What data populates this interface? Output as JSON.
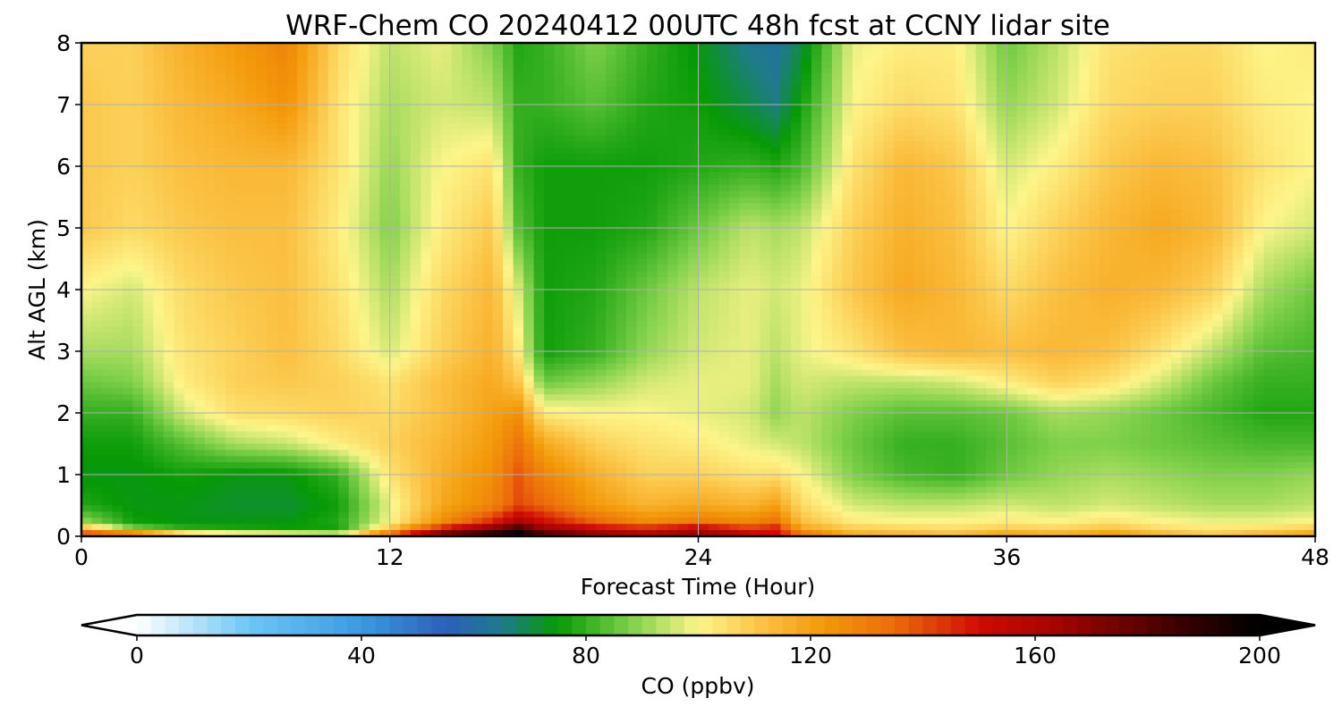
{
  "chart_data": {
    "type": "heatmap",
    "title": "WRF-Chem CO  20240412 00UTC 48h fcst at CCNY lidar site",
    "xlabel": "Forecast Time (Hour)",
    "ylabel": "Alt AGL (km)",
    "xlim": [
      0,
      48
    ],
    "ylim": [
      0,
      8
    ],
    "xticks": [
      0,
      12,
      24,
      36,
      48
    ],
    "yticks": [
      0,
      1,
      2,
      3,
      4,
      5,
      6,
      7,
      8
    ],
    "grid": true,
    "x": [
      0,
      2,
      4,
      6,
      8,
      10,
      12,
      14,
      16,
      17,
      18,
      20,
      22,
      24,
      26,
      27,
      28,
      30,
      32,
      34,
      36,
      38,
      40,
      42,
      44,
      46,
      48
    ],
    "y": [
      0,
      0.1,
      0.25,
      0.5,
      1,
      1.5,
      2,
      2.5,
      3,
      4,
      5,
      6,
      7,
      8
    ],
    "values": [
      [
        152,
        158,
        126,
        118,
        115,
        108,
        145,
        190,
        200,
        205,
        190,
        175,
        165,
        170,
        160,
        150,
        140,
        120,
        118,
        115,
        125,
        120,
        128,
        118,
        112,
        118,
        125
      ],
      [
        120,
        90,
        80,
        78,
        76,
        76,
        112,
        150,
        175,
        190,
        168,
        155,
        150,
        160,
        145,
        150,
        120,
        110,
        108,
        106,
        110,
        108,
        112,
        106,
        104,
        106,
        110
      ],
      [
        90,
        76,
        74,
        74,
        74,
        78,
        100,
        125,
        145,
        160,
        150,
        135,
        125,
        130,
        126,
        132,
        112,
        102,
        100,
        100,
        102,
        100,
        104,
        100,
        98,
        98,
        100
      ],
      [
        78,
        74,
        74,
        72,
        72,
        76,
        98,
        118,
        128,
        140,
        135,
        122,
        115,
        118,
        115,
        120,
        106,
        96,
        94,
        94,
        96,
        94,
        96,
        94,
        92,
        92,
        94
      ],
      [
        74,
        74,
        76,
        74,
        74,
        80,
        104,
        116,
        125,
        138,
        128,
        116,
        108,
        108,
        104,
        105,
        100,
        88,
        82,
        80,
        86,
        90,
        92,
        90,
        88,
        88,
        90
      ],
      [
        76,
        76,
        84,
        92,
        95,
        102,
        108,
        114,
        122,
        132,
        118,
        108,
        104,
        102,
        98,
        96,
        94,
        86,
        80,
        80,
        84,
        88,
        88,
        86,
        84,
        82,
        82
      ],
      [
        80,
        80,
        96,
        105,
        106,
        108,
        106,
        112,
        120,
        124,
        102,
        100,
        100,
        98,
        96,
        90,
        94,
        88,
        84,
        84,
        86,
        92,
        90,
        86,
        82,
        78,
        78
      ],
      [
        86,
        88,
        102,
        108,
        110,
        108,
        104,
        112,
        118,
        110,
        86,
        90,
        96,
        98,
        98,
        92,
        96,
        94,
        94,
        96,
        102,
        108,
        104,
        96,
        86,
        80,
        80
      ],
      [
        92,
        92,
        104,
        108,
        112,
        106,
        96,
        108,
        116,
        102,
        76,
        80,
        90,
        96,
        98,
        94,
        98,
        104,
        112,
        114,
        112,
        114,
        112,
        104,
        94,
        84,
        82
      ],
      [
        100,
        96,
        106,
        110,
        112,
        104,
        92,
        106,
        114,
        96,
        76,
        78,
        86,
        94,
        98,
        96,
        98,
        110,
        118,
        114,
        106,
        112,
        116,
        114,
        108,
        92,
        86
      ],
      [
        110,
        106,
        110,
        112,
        112,
        102,
        88,
        102,
        110,
        84,
        76,
        76,
        78,
        86,
        94,
        92,
        94,
        108,
        116,
        112,
        100,
        108,
        114,
        118,
        114,
        100,
        96
      ],
      [
        110,
        108,
        112,
        114,
        114,
        104,
        90,
        100,
        104,
        80,
        76,
        76,
        76,
        78,
        80,
        78,
        82,
        104,
        114,
        110,
        96,
        102,
        110,
        114,
        112,
        104,
        100
      ],
      [
        110,
        108,
        114,
        118,
        124,
        104,
        92,
        96,
        94,
        80,
        80,
        84,
        78,
        76,
        70,
        66,
        76,
        100,
        106,
        104,
        90,
        96,
        106,
        108,
        108,
        102,
        100
      ],
      [
        108,
        108,
        116,
        122,
        128,
        106,
        94,
        98,
        88,
        78,
        80,
        88,
        80,
        74,
        64,
        62,
        70,
        98,
        102,
        102,
        86,
        94,
        104,
        106,
        106,
        100,
        102
      ]
    ],
    "colorbar": {
      "label": "CO  (ppbv)",
      "min": 0,
      "max": 200,
      "ticks": [
        0,
        40,
        80,
        120,
        160,
        200
      ],
      "extend": "both",
      "stops": [
        {
          "v": 0,
          "color": "#ffffff"
        },
        {
          "v": 20,
          "color": "#6ec6f5"
        },
        {
          "v": 40,
          "color": "#3c9ae0"
        },
        {
          "v": 55,
          "color": "#2d5fb8"
        },
        {
          "v": 65,
          "color": "#1f7a8c"
        },
        {
          "v": 75,
          "color": "#079a06"
        },
        {
          "v": 88,
          "color": "#7fd04a"
        },
        {
          "v": 100,
          "color": "#fdf58a"
        },
        {
          "v": 112,
          "color": "#fbbf40"
        },
        {
          "v": 122,
          "color": "#f39a0a"
        },
        {
          "v": 135,
          "color": "#ec6b0c"
        },
        {
          "v": 150,
          "color": "#d00b04"
        },
        {
          "v": 165,
          "color": "#a00400"
        },
        {
          "v": 185,
          "color": "#3d0100"
        },
        {
          "v": 200,
          "color": "#000000"
        }
      ]
    }
  }
}
